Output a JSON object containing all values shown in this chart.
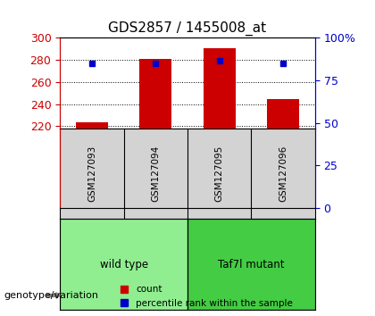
{
  "title": "GDS2857 / 1455008_at",
  "samples": [
    "GSM127093",
    "GSM127094",
    "GSM127095",
    "GSM127096"
  ],
  "counts": [
    224,
    281,
    291,
    245
  ],
  "percentile_values": [
    277,
    277,
    279,
    277
  ],
  "percentile_pct": [
    75,
    75,
    75,
    75
  ],
  "ylim_left": [
    218,
    300
  ],
  "ylim_right": [
    0,
    100
  ],
  "yticks_left": [
    220,
    240,
    260,
    280,
    300
  ],
  "yticks_right": [
    0,
    25,
    50,
    75,
    100
  ],
  "bar_color": "#cc0000",
  "marker_color": "#0000cc",
  "groups": [
    {
      "label": "wild type",
      "indices": [
        0,
        1
      ],
      "color": "#90ee90"
    },
    {
      "label": "Taf7l mutant",
      "indices": [
        2,
        3
      ],
      "color": "#44cc44"
    }
  ],
  "group_label_prefix": "genotype/variation",
  "legend_count_label": "count",
  "legend_percentile_label": "percentile rank within the sample",
  "background_plot": "#ffffff",
  "grid_color": "#000000",
  "sample_bg_color": "#d3d3d3"
}
